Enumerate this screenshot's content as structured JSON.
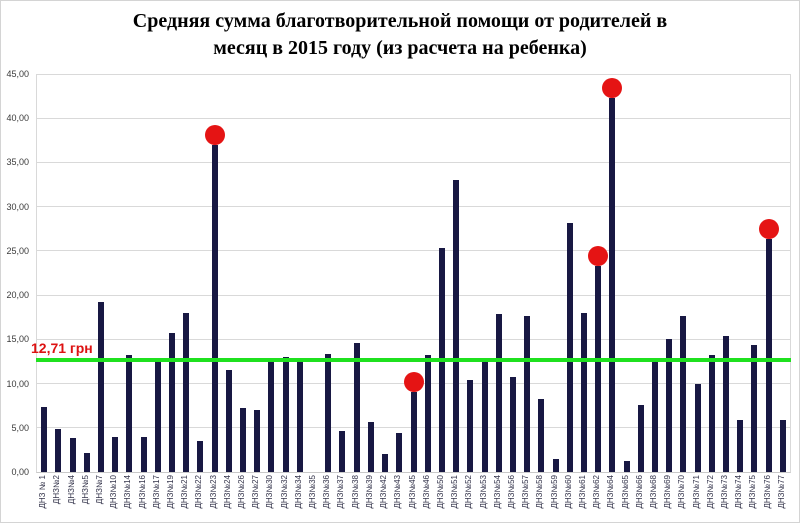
{
  "title": {
    "lines": [
      "Средняя сумма благотворительной помощи от родителей в",
      "месяц в 2015 году (из расчета на ребенка)"
    ]
  },
  "chart_data": {
    "type": "bar",
    "title": "Средняя сумма благотворительной помощи от родителей в месяц в 2015 году (из расчета на ребенка)",
    "categories": [
      "ДНЗ № 1",
      "ДНЗ№2",
      "ДНЗ№4",
      "ДНЗ№5",
      "ДНЗ№7",
      "ДНЗ№10",
      "ДНЗ№14",
      "ДНЗ№16",
      "ДНЗ№17",
      "ДНЗ№19",
      "ДНЗ№21",
      "ДНЗ№22",
      "ДНЗ№23",
      "ДНЗ№24",
      "ДНЗ№26",
      "ДНЗ№27",
      "ДНЗ№30",
      "ДНЗ№32",
      "ДНЗ№34",
      "ДНЗ№35",
      "ДНЗ№36",
      "ДНЗ№37",
      "ДНЗ№38",
      "ДНЗ№39",
      "ДНЗ№42",
      "ДНЗ№43",
      "ДНЗ№45",
      "ДНЗ№46",
      "ДНЗ№50",
      "ДНЗ№51",
      "ДНЗ№52",
      "ДНЗ№53",
      "ДНЗ№54",
      "ДНЗ№56",
      "ДНЗ№57",
      "ДНЗ№58",
      "ДНЗ№59",
      "ДНЗ№60",
      "ДНЗ№61",
      "ДНЗ№62",
      "ДНЗ№64",
      "ДНЗ№65",
      "ДНЗ№66",
      "ДНЗ№68",
      "ДНЗ№69",
      "ДНЗ№70",
      "ДНЗ№71",
      "ДНЗ№72",
      "ДНЗ№73",
      "ДНЗ№74",
      "ДНЗ№75",
      "ДНЗ№76",
      "ДНЗ№77"
    ],
    "values": [
      7.3,
      4.9,
      3.8,
      2.1,
      19.2,
      4.0,
      13.2,
      4.0,
      12.4,
      15.7,
      18.0,
      3.5,
      37.0,
      11.5,
      7.2,
      7.0,
      12.5,
      13.0,
      12.6,
      0,
      13.4,
      4.6,
      14.6,
      5.7,
      2.0,
      4.4,
      9.0,
      13.2,
      25.3,
      33.0,
      10.4,
      12.5,
      17.9,
      10.7,
      17.6,
      8.3,
      1.5,
      28.2,
      18.0,
      23.3,
      42.3,
      1.2,
      7.6,
      12.4,
      15.0,
      17.6,
      9.9,
      13.2,
      15.4,
      5.9,
      14.4,
      26.4,
      5.9
    ],
    "marked_indices": [
      12,
      26,
      39,
      40,
      51
    ],
    "marked_categories": [
      "ДНЗ№23",
      "ДНЗ№45",
      "ДНЗ№62",
      "ДНЗ№64",
      "ДНЗ№76"
    ],
    "reference_line": {
      "value": 12.71,
      "label": "12,71 грн",
      "color": "#1fe11f"
    },
    "xlabel": "",
    "ylabel": "",
    "ylim": [
      0,
      45
    ],
    "ytick_step": 5,
    "ytick_labels": [
      "0,00",
      "5,00",
      "10,00",
      "15,00",
      "20,00",
      "25,00",
      "30,00",
      "35,00",
      "40,00",
      "45,00"
    ],
    "grid": true,
    "legend": false,
    "colors": {
      "bar": "#181843",
      "marker": "#e51414",
      "gridline": "#d9d9d9"
    }
  }
}
